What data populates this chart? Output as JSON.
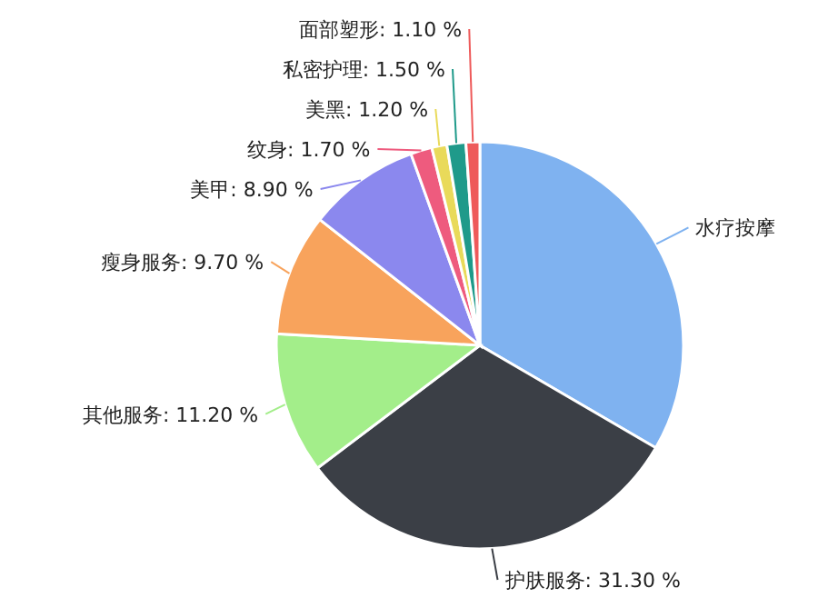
{
  "chart_data": {
    "type": "pie",
    "categories": [
      "水疗按摩",
      "护肤服务",
      "其他服务",
      "瘦身服务",
      "美甲",
      "纹身",
      "美黑",
      "私密护理",
      "面部塑形"
    ],
    "values": [
      33.4,
      31.3,
      11.2,
      9.7,
      8.9,
      1.7,
      1.2,
      1.5,
      1.1
    ],
    "colors": [
      "#7fb2f0",
      "#3b3f46",
      "#a3ee8a",
      "#f8a35c",
      "#8b88ee",
      "#ee5b7e",
      "#e9da5a",
      "#1f9a8a",
      "#ee5a5a"
    ],
    "value_labels": [
      null,
      "31.30 %",
      "11.20 %",
      "9.70 %",
      "8.90 %",
      "1.70 %",
      "1.20 %",
      "1.50 %",
      "1.10 %"
    ]
  }
}
